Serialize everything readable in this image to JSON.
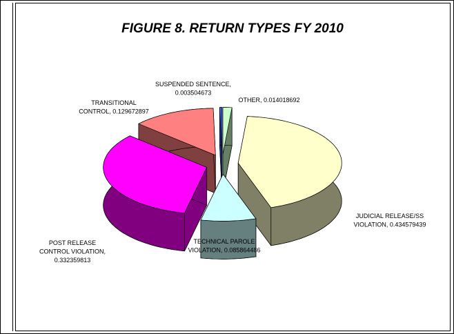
{
  "chart_data": {
    "type": "pie",
    "title": "FIGURE 8.  RETURN TYPES FY 2010",
    "values": [
      0.434579439,
      0.085864486,
      0.332359813,
      0.129672897,
      0.003504673,
      0.014018692
    ],
    "value_labels": [
      [
        "JUDICIAL RELEASE/SS",
        "VIOLATION, 0.434579439"
      ],
      [
        "TECHNICAL PAROLE",
        "VIOLATION, 0.085864486"
      ],
      [
        "POST RELEASE",
        "CONTROL VIOLATION,",
        "0.332359813"
      ],
      [
        "TRANSITIONAL",
        "CONTROL, 0.129672897"
      ],
      [
        "SUSPENDED SENTENCE,",
        "0.003504673"
      ],
      [
        "OTHER, 0.014018692"
      ]
    ],
    "colors": [
      "#FFFFCC",
      "#CCFFFF",
      "#FF00FF",
      "#FF8080",
      "#3366FF",
      "#CCFFCC"
    ]
  }
}
